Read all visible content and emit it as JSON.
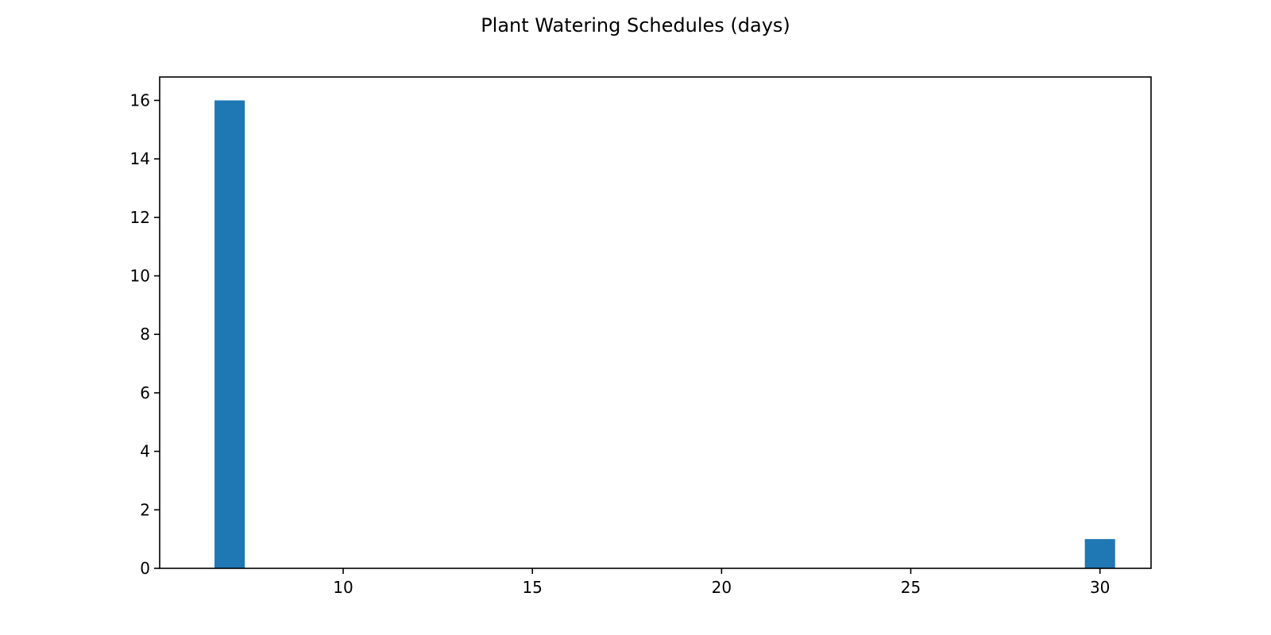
{
  "chart_data": {
    "type": "bar",
    "title": "Plant Watering Schedules (days)",
    "xlabel": "",
    "ylabel": "",
    "xlim": [
      5.15,
      31.35
    ],
    "ylim": [
      0,
      16.8
    ],
    "xticks": [
      10,
      15,
      20,
      25,
      30
    ],
    "yticks": [
      0,
      2,
      4,
      6,
      8,
      10,
      12,
      14,
      16
    ],
    "bin_width": 0.8,
    "bars": [
      {
        "x": 7.0,
        "count": 16
      },
      {
        "x": 30.0,
        "count": 1
      }
    ],
    "grid": false,
    "legend": "none",
    "bar_color": "#1f77b4"
  }
}
